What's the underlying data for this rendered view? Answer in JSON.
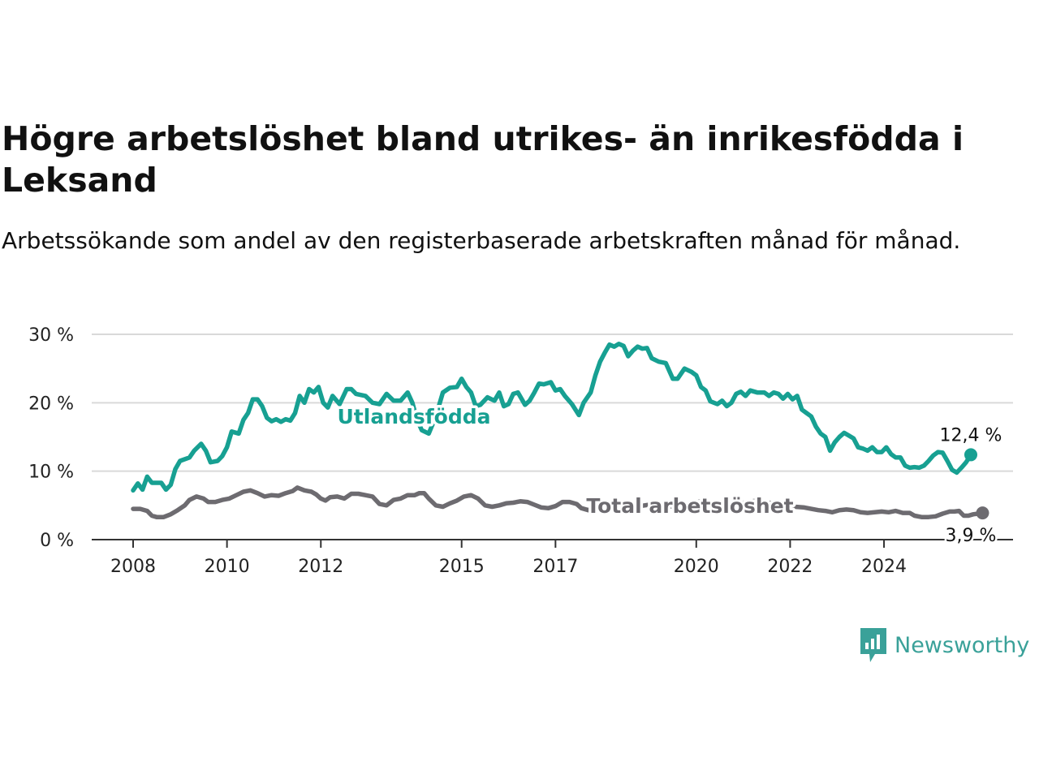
{
  "title": "Högre arbetslöshet bland utrikes- än inrikesfödda i Leksand",
  "subtitle": "Arbetssökande som andel av den registerbaserade arbetskraften månad för månad.",
  "brand": {
    "name": "Newsworthy",
    "icon": "newsworthy-bar-chart-icon",
    "color": "#3aa199"
  },
  "chart_data": {
    "type": "line",
    "x_unit": "year",
    "xlim": [
      2007.8,
      2025.5
    ],
    "ylim": [
      0,
      30
    ],
    "y_ticks": [
      "0 %",
      "10 %",
      "20 %",
      "30 %"
    ],
    "y_tick_values": [
      0,
      10,
      20,
      30
    ],
    "x_ticks": [
      "2008",
      "2010",
      "2012",
      "2015",
      "2017",
      "2020",
      "2022",
      "2024"
    ],
    "x_tick_values": [
      2008,
      2010,
      2012,
      2015,
      2017,
      2020,
      2022,
      2024
    ],
    "grid": true,
    "legend": "inline labels",
    "series": [
      {
        "name": "Utlandsfödda",
        "color": "#17a092",
        "end_label": "12,4 %",
        "points": [
          [
            2008.0,
            7.2
          ],
          [
            2008.1,
            8.2
          ],
          [
            2008.2,
            7.3
          ],
          [
            2008.3,
            9.2
          ],
          [
            2008.4,
            8.3
          ],
          [
            2008.6,
            8.3
          ],
          [
            2008.7,
            7.3
          ],
          [
            2008.8,
            8.0
          ],
          [
            2008.9,
            10.3
          ],
          [
            2009.0,
            11.5
          ],
          [
            2009.2,
            12.0
          ],
          [
            2009.3,
            13.0
          ],
          [
            2009.45,
            14.0
          ],
          [
            2009.55,
            13.0
          ],
          [
            2009.65,
            11.3
          ],
          [
            2009.8,
            11.5
          ],
          [
            2009.9,
            12.2
          ],
          [
            2010.0,
            13.5
          ],
          [
            2010.1,
            15.8
          ],
          [
            2010.25,
            15.5
          ],
          [
            2010.35,
            17.5
          ],
          [
            2010.45,
            18.5
          ],
          [
            2010.55,
            20.5
          ],
          [
            2010.65,
            20.5
          ],
          [
            2010.75,
            19.5
          ],
          [
            2010.85,
            17.8
          ],
          [
            2010.95,
            17.3
          ],
          [
            2011.05,
            17.6
          ],
          [
            2011.15,
            17.2
          ],
          [
            2011.25,
            17.6
          ],
          [
            2011.35,
            17.4
          ],
          [
            2011.45,
            18.5
          ],
          [
            2011.55,
            21.0
          ],
          [
            2011.65,
            20.0
          ],
          [
            2011.75,
            22.0
          ],
          [
            2011.85,
            21.5
          ],
          [
            2011.95,
            22.3
          ],
          [
            2012.05,
            20.0
          ],
          [
            2012.15,
            19.3
          ],
          [
            2012.25,
            21.0
          ],
          [
            2012.4,
            19.8
          ],
          [
            2012.55,
            22.0
          ],
          [
            2012.65,
            22.0
          ],
          [
            2012.75,
            21.3
          ],
          [
            2012.95,
            21.0
          ],
          [
            2013.1,
            20.0
          ],
          [
            2013.25,
            19.8
          ],
          [
            2013.4,
            21.3
          ],
          [
            2013.55,
            20.3
          ],
          [
            2013.7,
            20.3
          ],
          [
            2013.85,
            21.5
          ],
          [
            2013.95,
            20.0
          ],
          [
            2014.05,
            17.5
          ],
          [
            2014.15,
            16.0
          ],
          [
            2014.3,
            15.5
          ],
          [
            2014.45,
            18.0
          ],
          [
            2014.6,
            21.5
          ],
          [
            2014.75,
            22.2
          ],
          [
            2014.9,
            22.3
          ],
          [
            2015.0,
            23.5
          ],
          [
            2015.1,
            22.3
          ],
          [
            2015.2,
            21.5
          ],
          [
            2015.3,
            19.5
          ],
          [
            2015.4,
            19.7
          ],
          [
            2015.55,
            20.8
          ],
          [
            2015.7,
            20.3
          ],
          [
            2015.8,
            21.5
          ],
          [
            2015.9,
            19.5
          ],
          [
            2016.0,
            19.8
          ],
          [
            2016.1,
            21.3
          ],
          [
            2016.2,
            21.5
          ],
          [
            2016.35,
            19.7
          ],
          [
            2016.45,
            20.3
          ],
          [
            2016.55,
            21.5
          ],
          [
            2016.65,
            22.8
          ],
          [
            2016.75,
            22.7
          ],
          [
            2016.9,
            23.0
          ],
          [
            2017.0,
            21.8
          ],
          [
            2017.1,
            22.0
          ],
          [
            2017.2,
            21.0
          ],
          [
            2017.35,
            19.8
          ],
          [
            2017.5,
            18.2
          ],
          [
            2017.6,
            20.0
          ],
          [
            2017.75,
            21.5
          ],
          [
            2017.85,
            24.0
          ],
          [
            2017.95,
            26.0
          ],
          [
            2018.05,
            27.3
          ],
          [
            2018.15,
            28.5
          ],
          [
            2018.25,
            28.2
          ],
          [
            2018.35,
            28.6
          ],
          [
            2018.45,
            28.3
          ],
          [
            2018.55,
            26.8
          ],
          [
            2018.65,
            27.6
          ],
          [
            2018.75,
            28.2
          ],
          [
            2018.85,
            27.9
          ],
          [
            2018.95,
            28.0
          ],
          [
            2019.05,
            26.5
          ],
          [
            2019.2,
            26.0
          ],
          [
            2019.35,
            25.8
          ],
          [
            2019.5,
            23.5
          ],
          [
            2019.6,
            23.5
          ],
          [
            2019.75,
            25.0
          ],
          [
            2019.9,
            24.5
          ],
          [
            2020.0,
            24.0
          ],
          [
            2020.1,
            22.3
          ],
          [
            2020.2,
            21.8
          ],
          [
            2020.3,
            20.2
          ],
          [
            2020.45,
            19.8
          ],
          [
            2020.55,
            20.3
          ],
          [
            2020.65,
            19.5
          ],
          [
            2020.75,
            20.0
          ],
          [
            2020.85,
            21.3
          ],
          [
            2020.95,
            21.6
          ],
          [
            2021.05,
            21.0
          ],
          [
            2021.15,
            21.8
          ],
          [
            2021.3,
            21.5
          ],
          [
            2021.45,
            21.5
          ],
          [
            2021.55,
            21.0
          ],
          [
            2021.65,
            21.5
          ],
          [
            2021.75,
            21.3
          ],
          [
            2021.85,
            20.6
          ],
          [
            2021.95,
            21.3
          ],
          [
            2022.05,
            20.5
          ],
          [
            2022.15,
            21.0
          ],
          [
            2022.25,
            19.0
          ],
          [
            2022.35,
            18.5
          ],
          [
            2022.45,
            18.0
          ],
          [
            2022.55,
            16.5
          ],
          [
            2022.65,
            15.5
          ],
          [
            2022.75,
            15.0
          ],
          [
            2022.85,
            13.0
          ],
          [
            2022.95,
            14.2
          ],
          [
            2023.05,
            15.0
          ],
          [
            2023.15,
            15.6
          ],
          [
            2023.25,
            15.2
          ],
          [
            2023.35,
            14.8
          ],
          [
            2023.45,
            13.5
          ],
          [
            2023.55,
            13.3
          ],
          [
            2023.65,
            13.0
          ],
          [
            2023.75,
            13.5
          ],
          [
            2023.85,
            12.8
          ],
          [
            2023.95,
            12.8
          ],
          [
            2024.05,
            13.5
          ],
          [
            2024.15,
            12.5
          ],
          [
            2024.25,
            12.0
          ],
          [
            2024.35,
            12.0
          ],
          [
            2024.45,
            10.8
          ],
          [
            2024.55,
            10.5
          ],
          [
            2024.65,
            10.6
          ],
          [
            2024.75,
            10.5
          ],
          [
            2024.85,
            10.8
          ],
          [
            2024.95,
            11.5
          ],
          [
            2025.05,
            12.3
          ],
          [
            2025.15,
            12.8
          ],
          [
            2025.25,
            12.7
          ],
          [
            2025.35,
            11.5
          ],
          [
            2025.45,
            10.2
          ],
          [
            2025.55,
            9.8
          ],
          [
            2025.65,
            10.5
          ],
          [
            2025.75,
            11.3
          ],
          [
            2025.85,
            12.4
          ]
        ]
      },
      {
        "name": "Total arbetslöshet",
        "color": "#6d6b70",
        "end_label": "3,9 %",
        "points": [
          [
            2008.0,
            4.5
          ],
          [
            2008.15,
            4.5
          ],
          [
            2008.3,
            4.2
          ],
          [
            2008.4,
            3.5
          ],
          [
            2008.5,
            3.3
          ],
          [
            2008.65,
            3.3
          ],
          [
            2008.8,
            3.7
          ],
          [
            2008.95,
            4.3
          ],
          [
            2009.1,
            5.0
          ],
          [
            2009.2,
            5.8
          ],
          [
            2009.35,
            6.3
          ],
          [
            2009.5,
            6.0
          ],
          [
            2009.6,
            5.5
          ],
          [
            2009.75,
            5.5
          ],
          [
            2009.9,
            5.8
          ],
          [
            2010.05,
            6.0
          ],
          [
            2010.2,
            6.5
          ],
          [
            2010.35,
            7.0
          ],
          [
            2010.5,
            7.2
          ],
          [
            2010.65,
            6.8
          ],
          [
            2010.8,
            6.3
          ],
          [
            2010.95,
            6.5
          ],
          [
            2011.1,
            6.4
          ],
          [
            2011.25,
            6.8
          ],
          [
            2011.4,
            7.1
          ],
          [
            2011.5,
            7.6
          ],
          [
            2011.65,
            7.2
          ],
          [
            2011.8,
            7.0
          ],
          [
            2011.9,
            6.6
          ],
          [
            2012.0,
            6.0
          ],
          [
            2012.1,
            5.7
          ],
          [
            2012.2,
            6.2
          ],
          [
            2012.35,
            6.3
          ],
          [
            2012.5,
            6.0
          ],
          [
            2012.65,
            6.7
          ],
          [
            2012.8,
            6.7
          ],
          [
            2012.95,
            6.5
          ],
          [
            2013.1,
            6.3
          ],
          [
            2013.25,
            5.2
          ],
          [
            2013.4,
            5.0
          ],
          [
            2013.55,
            5.8
          ],
          [
            2013.7,
            6.0
          ],
          [
            2013.85,
            6.5
          ],
          [
            2014.0,
            6.5
          ],
          [
            2014.1,
            6.8
          ],
          [
            2014.2,
            6.8
          ],
          [
            2014.3,
            6.0
          ],
          [
            2014.45,
            5.0
          ],
          [
            2014.6,
            4.8
          ],
          [
            2014.75,
            5.3
          ],
          [
            2014.9,
            5.7
          ],
          [
            2015.05,
            6.3
          ],
          [
            2015.2,
            6.5
          ],
          [
            2015.35,
            6.0
          ],
          [
            2015.5,
            5.0
          ],
          [
            2015.65,
            4.8
          ],
          [
            2015.8,
            5.0
          ],
          [
            2015.95,
            5.3
          ],
          [
            2016.1,
            5.4
          ],
          [
            2016.25,
            5.6
          ],
          [
            2016.4,
            5.5
          ],
          [
            2016.55,
            5.1
          ],
          [
            2016.7,
            4.7
          ],
          [
            2016.85,
            4.6
          ],
          [
            2017.0,
            4.9
          ],
          [
            2017.15,
            5.5
          ],
          [
            2017.3,
            5.5
          ],
          [
            2017.45,
            5.2
          ],
          [
            2017.55,
            4.6
          ],
          [
            2017.7,
            4.3
          ],
          [
            2017.85,
            4.6
          ],
          [
            2018.0,
            5.0
          ],
          [
            2018.15,
            5.4
          ],
          [
            2018.3,
            5.3
          ],
          [
            2018.5,
            5.0
          ],
          [
            2018.7,
            4.8
          ],
          [
            2018.9,
            5.0
          ],
          [
            2019.1,
            5.2
          ],
          [
            2019.3,
            5.0
          ],
          [
            2019.5,
            4.8
          ],
          [
            2019.7,
            5.1
          ],
          [
            2019.9,
            5.3
          ],
          [
            2020.1,
            5.6
          ],
          [
            2020.3,
            5.5
          ],
          [
            2020.5,
            5.2
          ],
          [
            2020.7,
            5.0
          ],
          [
            2020.9,
            5.2
          ],
          [
            2021.1,
            5.5
          ],
          [
            2021.3,
            5.7
          ],
          [
            2021.5,
            5.4
          ],
          [
            2021.7,
            5.3
          ],
          [
            2021.9,
            5.0
          ],
          [
            2022.1,
            4.8
          ],
          [
            2022.3,
            4.7
          ],
          [
            2022.45,
            4.5
          ],
          [
            2022.6,
            4.3
          ],
          [
            2022.75,
            4.2
          ],
          [
            2022.9,
            4.0
          ],
          [
            2023.05,
            4.3
          ],
          [
            2023.2,
            4.4
          ],
          [
            2023.35,
            4.3
          ],
          [
            2023.5,
            4.0
          ],
          [
            2023.65,
            3.9
          ],
          [
            2023.8,
            4.0
          ],
          [
            2023.95,
            4.1
          ],
          [
            2024.1,
            4.0
          ],
          [
            2024.25,
            4.2
          ],
          [
            2024.4,
            3.9
          ],
          [
            2024.55,
            3.9
          ],
          [
            2024.65,
            3.5
          ],
          [
            2024.8,
            3.3
          ],
          [
            2024.95,
            3.3
          ],
          [
            2025.1,
            3.4
          ],
          [
            2025.25,
            3.8
          ],
          [
            2025.4,
            4.1
          ],
          [
            2025.5,
            4.1
          ],
          [
            2025.6,
            4.2
          ],
          [
            2025.7,
            3.5
          ],
          [
            2025.8,
            3.5
          ],
          [
            2025.9,
            3.7
          ],
          [
            2026.0,
            3.8
          ],
          [
            2026.1,
            3.9
          ]
        ]
      }
    ]
  }
}
